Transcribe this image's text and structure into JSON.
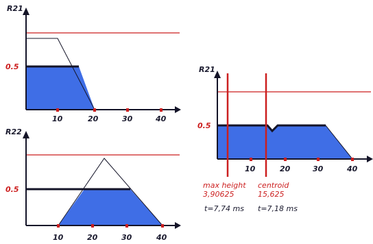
{
  "charts": [
    {
      "id": "r21-top",
      "ylabel": "R21",
      "half_label": "0.5",
      "x_ticks": [
        "10",
        "20",
        "30",
        "40"
      ]
    },
    {
      "id": "r22-bottom",
      "ylabel": "R22",
      "half_label": "0.5",
      "x_ticks": [
        "10",
        "20",
        "30",
        "40"
      ]
    },
    {
      "id": "r21-aggregate",
      "ylabel": "R21",
      "half_label": "0.5",
      "x_ticks": [
        "10",
        "20",
        "30",
        "40"
      ]
    }
  ],
  "annotations": {
    "max_height_label": "max height",
    "max_height_value": "3,90625",
    "max_height_time": "t=7,74 ms",
    "centroid_label": "centroid",
    "centroid_value": "15,625",
    "centroid_time": "t=7,18 ms"
  },
  "colors": {
    "fill_blue": "#3f6ee6",
    "axis_dark": "#141428",
    "red_line": "#cc1f1f"
  }
}
